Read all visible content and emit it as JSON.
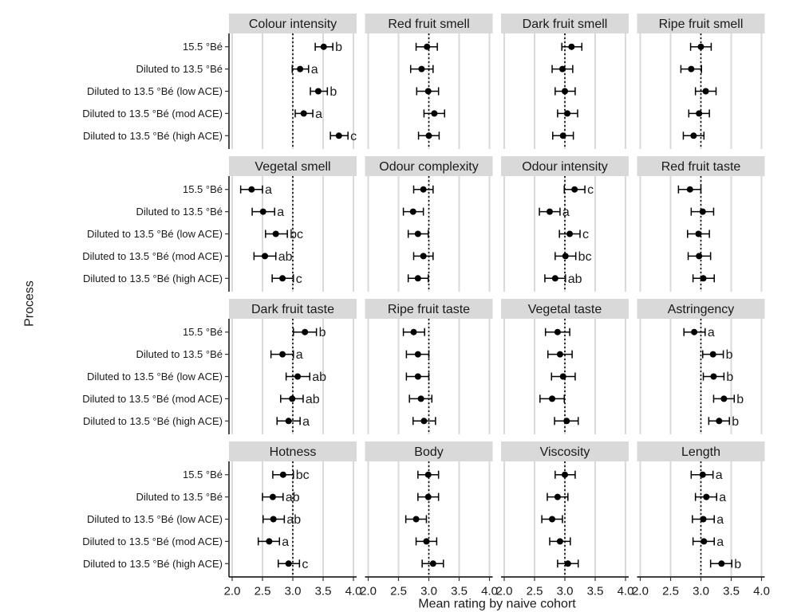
{
  "chart_data": {
    "type": "scatter",
    "xlabel": "Mean rating by naive cohort",
    "ylabel": "Process",
    "xlim": [
      2.0,
      4.0
    ],
    "xticks": [
      2.0,
      2.5,
      3.0,
      3.5,
      4.0
    ],
    "xtick_labels": [
      "2.0",
      "2.5",
      "3.0",
      "3.5",
      "4.0"
    ],
    "reference_line": 3.0,
    "grid": true,
    "colors": {
      "points": "#000000",
      "strip": "#d9d9d9",
      "grid": "#d9d9d9",
      "reference_line": "#000000"
    },
    "categories": [
      "15.5 °Bé",
      "Diluted to 13.5 °Bé",
      "Diluted to 13.5 °Bé (low ACE)",
      "Diluted to 13.5 °Bé (mod ACE)",
      "Diluted to 13.5 °Bé (high ACE)"
    ],
    "panels": [
      {
        "title": "Colour intensity",
        "mean": [
          3.51,
          3.12,
          3.42,
          3.18,
          3.76
        ],
        "lower": [
          3.37,
          2.99,
          3.29,
          3.04,
          3.62
        ],
        "upper": [
          3.66,
          3.26,
          3.57,
          3.33,
          3.91
        ],
        "letters": [
          "b",
          "a",
          "b",
          "a",
          "c"
        ]
      },
      {
        "title": "Red fruit smell",
        "mean": [
          2.97,
          2.88,
          2.99,
          3.09,
          3.0
        ],
        "lower": [
          2.79,
          2.7,
          2.8,
          2.92,
          2.83
        ],
        "upper": [
          3.14,
          3.07,
          3.16,
          3.26,
          3.17
        ]
      },
      {
        "title": "Dark fruit smell",
        "mean": [
          3.11,
          2.96,
          3.0,
          3.04,
          2.97
        ],
        "lower": [
          2.95,
          2.79,
          2.84,
          2.88,
          2.8
        ],
        "upper": [
          3.28,
          3.13,
          3.17,
          3.21,
          3.14
        ]
      },
      {
        "title": "Ripe fruit smell",
        "mean": [
          3.0,
          2.84,
          3.08,
          2.97,
          2.88
        ],
        "lower": [
          2.83,
          2.67,
          2.91,
          2.8,
          2.71
        ],
        "upper": [
          3.17,
          3.01,
          3.25,
          3.14,
          3.05
        ]
      },
      {
        "title": "Vegetal smell",
        "mean": [
          2.32,
          2.51,
          2.72,
          2.54,
          2.83
        ],
        "lower": [
          2.14,
          2.33,
          2.55,
          2.36,
          2.66
        ],
        "upper": [
          2.5,
          2.7,
          2.91,
          2.72,
          3.01
        ],
        "letters": [
          "a",
          "a",
          "bc",
          "ab",
          "c"
        ]
      },
      {
        "title": "Odour complexity",
        "mean": [
          2.91,
          2.74,
          2.82,
          2.91,
          2.82
        ],
        "lower": [
          2.75,
          2.58,
          2.66,
          2.75,
          2.66
        ],
        "upper": [
          3.07,
          2.91,
          2.99,
          3.07,
          2.99
        ]
      },
      {
        "title": "Odour intensity",
        "mean": [
          3.16,
          2.75,
          3.08,
          3.01,
          2.84
        ],
        "lower": [
          2.99,
          2.58,
          2.91,
          2.84,
          2.67
        ],
        "upper": [
          3.33,
          2.92,
          3.25,
          3.18,
          3.01
        ],
        "letters": [
          "c",
          "a",
          "c",
          "bc",
          "ab"
        ]
      },
      {
        "title": "Red fruit taste",
        "mean": [
          2.82,
          3.03,
          2.96,
          2.97,
          3.04
        ],
        "lower": [
          2.63,
          2.84,
          2.78,
          2.79,
          2.87
        ],
        "upper": [
          3.0,
          3.21,
          3.14,
          3.16,
          3.22
        ]
      },
      {
        "title": "Dark fruit taste",
        "mean": [
          3.2,
          2.83,
          3.08,
          2.99,
          2.93
        ],
        "lower": [
          3.01,
          2.64,
          2.89,
          2.8,
          2.74
        ],
        "upper": [
          3.39,
          3.01,
          3.28,
          3.17,
          3.12
        ],
        "letters": [
          "b",
          "a",
          "ab",
          "ab",
          "a"
        ]
      },
      {
        "title": "Ripe fruit taste",
        "mean": [
          2.75,
          2.82,
          2.82,
          2.87,
          2.92
        ],
        "lower": [
          2.58,
          2.63,
          2.63,
          2.68,
          2.74
        ],
        "upper": [
          2.93,
          3.0,
          3.0,
          3.05,
          3.11
        ]
      },
      {
        "title": "Vegetal taste",
        "mean": [
          2.88,
          2.92,
          2.97,
          2.79,
          3.03
        ],
        "lower": [
          2.68,
          2.72,
          2.78,
          2.59,
          2.83
        ],
        "upper": [
          3.08,
          3.12,
          3.17,
          2.99,
          3.22
        ]
      },
      {
        "title": "Astringency",
        "mean": [
          2.89,
          3.2,
          3.21,
          3.38,
          3.3
        ],
        "lower": [
          2.72,
          3.03,
          3.04,
          3.21,
          3.13
        ],
        "upper": [
          3.07,
          3.37,
          3.38,
          3.55,
          3.47
        ],
        "letters": [
          "a",
          "b",
          "b",
          "b",
          "b"
        ]
      },
      {
        "title": "Hotness",
        "mean": [
          2.84,
          2.67,
          2.68,
          2.61,
          2.93
        ],
        "lower": [
          2.67,
          2.5,
          2.51,
          2.43,
          2.76
        ],
        "upper": [
          3.01,
          2.84,
          2.86,
          2.78,
          3.11
        ],
        "letters": [
          "bc",
          "ab",
          "ab",
          "a",
          "c"
        ]
      },
      {
        "title": "Body",
        "mean": [
          2.99,
          2.99,
          2.79,
          2.96,
          3.07
        ],
        "lower": [
          2.82,
          2.82,
          2.62,
          2.79,
          2.89
        ],
        "upper": [
          3.16,
          3.16,
          2.96,
          3.13,
          3.24
        ]
      },
      {
        "title": "Viscosity",
        "mean": [
          3.0,
          2.88,
          2.79,
          2.92,
          3.05
        ],
        "lower": [
          2.84,
          2.71,
          2.62,
          2.75,
          2.88
        ],
        "upper": [
          3.17,
          3.05,
          2.96,
          3.09,
          3.22
        ]
      },
      {
        "title": "Length",
        "mean": [
          3.03,
          3.09,
          3.04,
          3.05,
          3.34
        ],
        "lower": [
          2.84,
          2.91,
          2.86,
          2.87,
          3.16
        ],
        "upper": [
          3.2,
          3.26,
          3.22,
          3.22,
          3.51
        ],
        "letters": [
          "a",
          "a",
          "a",
          "a",
          "b"
        ]
      }
    ]
  }
}
